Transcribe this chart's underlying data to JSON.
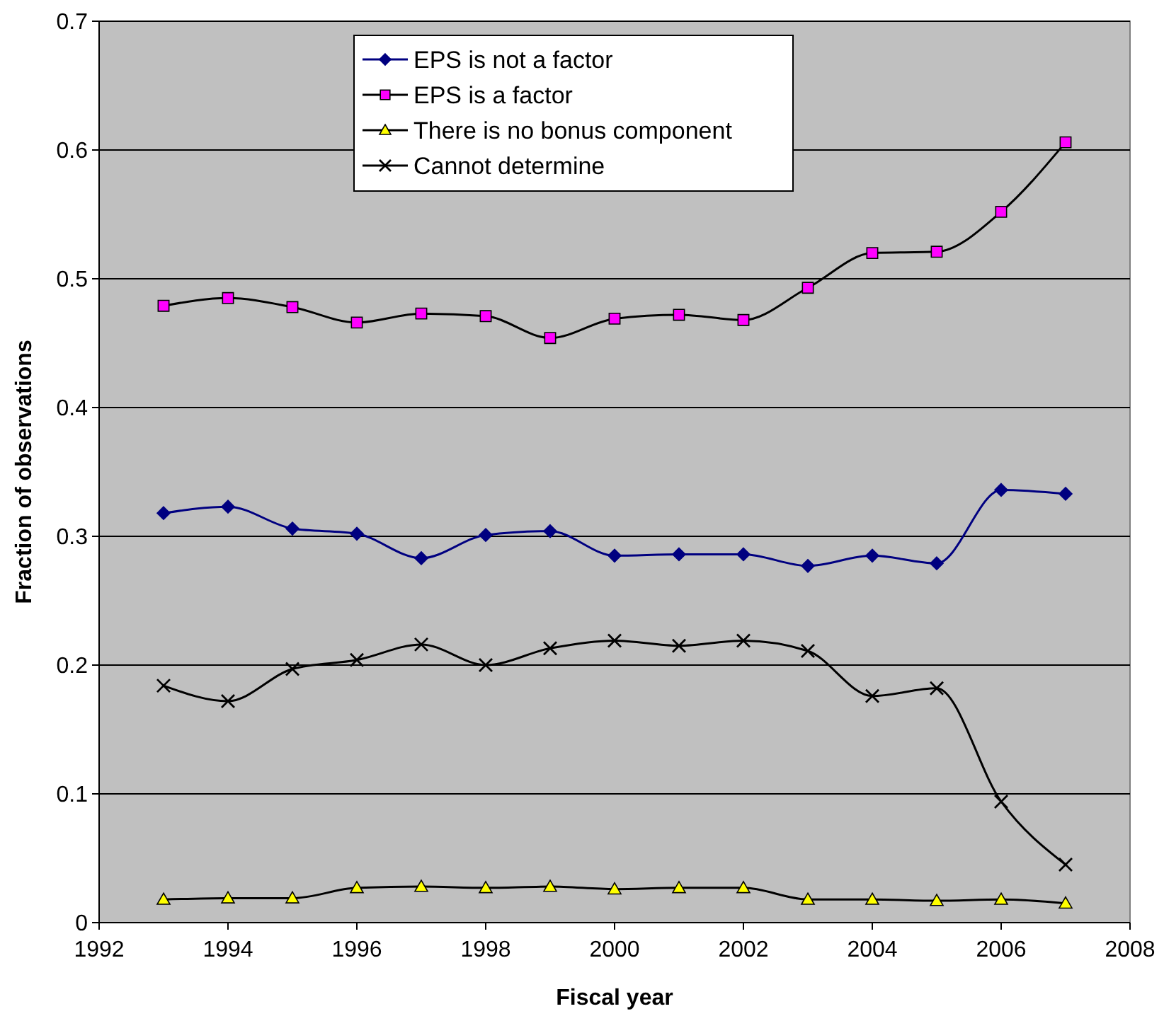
{
  "chart_data": {
    "type": "line",
    "xlabel": "Fiscal year",
    "ylabel": "Fraction of observations",
    "x": [
      1993,
      1994,
      1995,
      1996,
      1997,
      1998,
      1999,
      2000,
      2001,
      2002,
      2003,
      2004,
      2005,
      2006,
      2007
    ],
    "series": [
      {
        "name": "EPS is not a factor",
        "color": "#000080",
        "marker": "diamond",
        "values": [
          0.318,
          0.323,
          0.306,
          0.302,
          0.283,
          0.301,
          0.304,
          0.285,
          0.286,
          0.286,
          0.277,
          0.285,
          0.279,
          0.336,
          0.333
        ]
      },
      {
        "name": "EPS is a factor",
        "color": "#000000",
        "colors": [
          "#ff00ff",
          "#ff00ff",
          "#ff00ff",
          "#ff00ff",
          "#ff00ff",
          "#ff00ff",
          "#ff00ff",
          "#ff00ff",
          "#ff00ff",
          "#ff00ff",
          "#ff00ff",
          "#ff00ff",
          "#ff00ff",
          "#ff00ff",
          "#ff00ff"
        ],
        "marker": "square",
        "values": [
          0.479,
          0.485,
          0.478,
          0.466,
          0.473,
          0.471,
          0.454,
          0.469,
          0.472,
          0.468,
          0.493,
          0.52,
          0.521,
          0.552,
          0.606
        ]
      },
      {
        "name": "There is no bonus component",
        "color": "#000000",
        "colors": [
          "#ffff00",
          "#ffff00",
          "#ffff00",
          "#ffff00",
          "#ffff00",
          "#ffff00",
          "#ffff00",
          "#ffff00",
          "#ffff00",
          "#ffff00",
          "#ffff00",
          "#ffff00",
          "#ffff00",
          "#ffff00",
          "#ffff00"
        ],
        "marker": "triangle",
        "values": [
          0.018,
          0.019,
          0.019,
          0.027,
          0.028,
          0.027,
          0.028,
          0.026,
          0.027,
          0.027,
          0.018,
          0.018,
          0.017,
          0.018,
          0.015
        ]
      },
      {
        "name": "Cannot determine",
        "color": "#000000",
        "marker": "cross",
        "values": [
          0.184,
          0.172,
          0.197,
          0.204,
          0.216,
          0.2,
          0.213,
          0.219,
          0.215,
          0.219,
          0.211,
          0.176,
          0.182,
          0.094,
          0.045
        ]
      }
    ],
    "xlim": [
      1992,
      2008
    ],
    "xticks": [
      1992,
      1994,
      1996,
      1998,
      2000,
      2002,
      2004,
      2006,
      2008
    ],
    "ylim": [
      0,
      0.7
    ],
    "yticks": [
      0,
      0.1,
      0.2,
      0.3,
      0.4,
      0.5,
      0.6,
      0.7
    ],
    "grid": "y",
    "legend": "top"
  }
}
